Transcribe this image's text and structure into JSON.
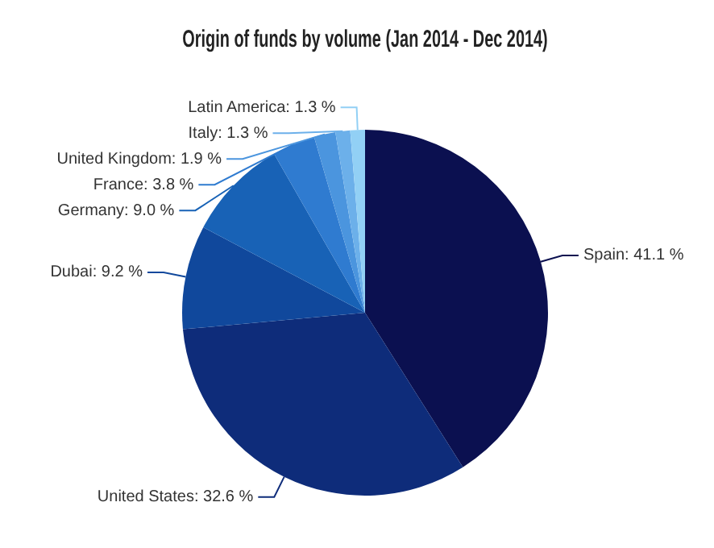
{
  "chart_data": {
    "type": "pie",
    "title": "Origin of funds by volume (Jan 2014 - Dec 2014)",
    "categories": [
      "Spain",
      "United States",
      "Dubai",
      "Germany",
      "France",
      "United Kingdom",
      "Italy",
      "Latin America"
    ],
    "values": [
      41.1,
      32.6,
      9.2,
      9.0,
      3.8,
      1.9,
      1.3,
      1.3
    ],
    "colors": [
      "#0b1050",
      "#0e2c7a",
      "#10489c",
      "#1862b6",
      "#2f7bd0",
      "#4b95de",
      "#6cb0ea",
      "#92d0f5"
    ],
    "value_labels": [
      "41.1 %",
      "32.6 %",
      "9.2 %",
      "9.0 %",
      "3.8 %",
      "1.9 %",
      "1.3 %",
      "1.3 %"
    ]
  }
}
